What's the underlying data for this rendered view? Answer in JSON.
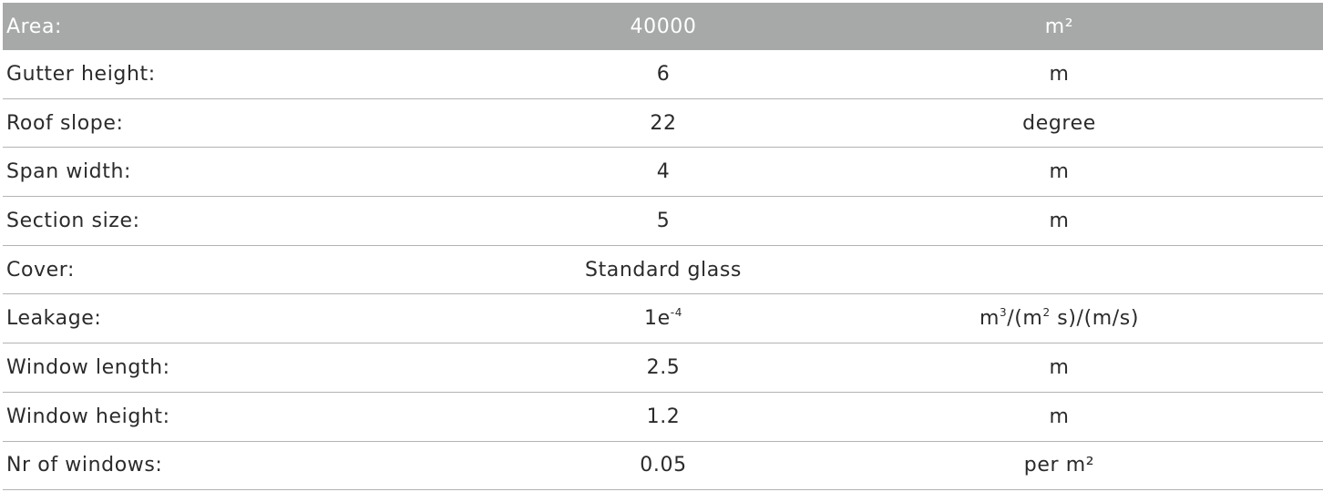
{
  "rows": [
    {
      "label": "Area:",
      "value": "40000",
      "unit": "m²"
    },
    {
      "label": "Gutter height:",
      "value": "6",
      "unit": "m"
    },
    {
      "label": "Roof slope:",
      "value": "22",
      "unit": "degree"
    },
    {
      "label": "Span width:",
      "value": "4",
      "unit": "m"
    },
    {
      "label": "Section size:",
      "value": "5",
      "unit": "m"
    },
    {
      "label": "Cover:",
      "value": "Standard glass",
      "unit": ""
    },
    {
      "label": "Leakage:",
      "value_base": "1e",
      "value_exp": "-4",
      "unit_part1": "m",
      "unit_exp1": "3",
      "unit_part2": "/(m",
      "unit_exp2": "2",
      "unit_part3": " s)/(m/s)"
    },
    {
      "label": "Window length:",
      "value": "2.5",
      "unit": "m"
    },
    {
      "label": "Window height:",
      "value": "1.2",
      "unit": "m"
    },
    {
      "label": "Nr of windows:",
      "value": "0.05",
      "unit": "per m²"
    }
  ]
}
